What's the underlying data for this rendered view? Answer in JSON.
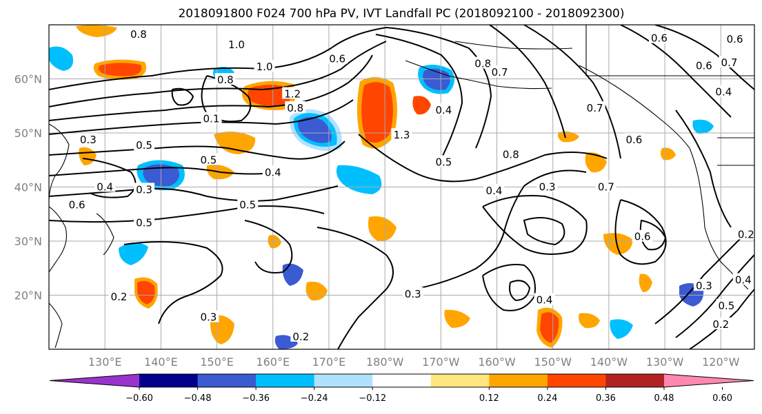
{
  "title": "2018091800 F024 700 hPa PV, IVT Landfall PC (2018092100 - 2018092300)",
  "map": {
    "lat_labels": [
      {
        "text": "60°N",
        "lat": 60
      },
      {
        "text": "50°N",
        "lat": 50
      },
      {
        "text": "40°N",
        "lat": 40
      },
      {
        "text": "30°N",
        "lat": 30
      },
      {
        "text": "20°N",
        "lat": 20
      }
    ],
    "lon_labels": [
      {
        "text": "130°E",
        "lon": 130
      },
      {
        "text": "140°E",
        "lon": 140
      },
      {
        "text": "150°E",
        "lon": 150
      },
      {
        "text": "160°E",
        "lon": 160
      },
      {
        "text": "170°E",
        "lon": 170
      },
      {
        "text": "180°W",
        "lon": 180
      },
      {
        "text": "170°W",
        "lon": 190
      },
      {
        "text": "160°W",
        "lon": 200
      },
      {
        "text": "150°W",
        "lon": 210
      },
      {
        "text": "140°W",
        "lon": 220
      },
      {
        "text": "130°W",
        "lon": 230
      },
      {
        "text": "120°W",
        "lon": 240
      }
    ],
    "extent": {
      "lon_min": 120,
      "lon_max": 246,
      "lat_min": 10,
      "lat_max": 70
    },
    "gridlines": true,
    "contour_labels": [
      {
        "text": "0.8",
        "lon": 136,
        "lat": 68.2
      },
      {
        "text": "1.0",
        "lon": 153.5,
        "lat": 66.3
      },
      {
        "text": "1.0",
        "lon": 158.5,
        "lat": 62.2
      },
      {
        "text": "0.8",
        "lon": 151.5,
        "lat": 59.8
      },
      {
        "text": "1.2",
        "lon": 163.5,
        "lat": 57.2
      },
      {
        "text": "0.8",
        "lon": 164,
        "lat": 54.6
      },
      {
        "text": "0.6",
        "lon": 171.5,
        "lat": 63.7
      },
      {
        "text": "0.8",
        "lon": 197.5,
        "lat": 62.8
      },
      {
        "text": "0.7",
        "lon": 200.5,
        "lat": 61.2
      },
      {
        "text": "0.4",
        "lon": 190.5,
        "lat": 54.2
      },
      {
        "text": "1.3",
        "lon": 183,
        "lat": 49.6
      },
      {
        "text": "0.5",
        "lon": 190.5,
        "lat": 44.6
      },
      {
        "text": "0.8",
        "lon": 202.5,
        "lat": 46.0
      },
      {
        "text": "0.7",
        "lon": 217.5,
        "lat": 54.6
      },
      {
        "text": "0.6",
        "lon": 224.5,
        "lat": 48.7
      },
      {
        "text": "0.7",
        "lon": 219.5,
        "lat": 40.0
      },
      {
        "text": "0.3",
        "lon": 209,
        "lat": 40.0
      },
      {
        "text": "0.4",
        "lon": 199.5,
        "lat": 39.3
      },
      {
        "text": "0.4",
        "lon": 160,
        "lat": 42.7
      },
      {
        "text": "0.5",
        "lon": 148.5,
        "lat": 45.0
      },
      {
        "text": "0.5",
        "lon": 137,
        "lat": 47.7
      },
      {
        "text": "0.3",
        "lon": 127,
        "lat": 48.7
      },
      {
        "text": "0.4",
        "lon": 130,
        "lat": 40.0
      },
      {
        "text": "0.3",
        "lon": 137,
        "lat": 39.5
      },
      {
        "text": "0.6",
        "lon": 125,
        "lat": 36.7
      },
      {
        "text": "0.5",
        "lon": 137,
        "lat": 33.4
      },
      {
        "text": "0.5",
        "lon": 155.5,
        "lat": 36.7
      },
      {
        "text": "0.1",
        "lon": 149,
        "lat": 52.6
      },
      {
        "text": "0.3",
        "lon": 185,
        "lat": 20.2
      },
      {
        "text": "0.4",
        "lon": 208.5,
        "lat": 19.1
      },
      {
        "text": "0.3",
        "lon": 148.5,
        "lat": 15.9
      },
      {
        "text": "0.2",
        "lon": 165,
        "lat": 12.3
      },
      {
        "text": "0.2",
        "lon": 132.5,
        "lat": 19.7
      },
      {
        "text": "0.6",
        "lon": 226,
        "lat": 30.8
      },
      {
        "text": "0.3",
        "lon": 237,
        "lat": 21.7
      },
      {
        "text": "0.4",
        "lon": 244,
        "lat": 22.8
      },
      {
        "text": "0.5",
        "lon": 241,
        "lat": 18.0
      },
      {
        "text": "0.2",
        "lon": 240,
        "lat": 14.6
      },
      {
        "text": "0.6",
        "lon": 229,
        "lat": 67.5
      },
      {
        "text": "0.6",
        "lon": 242.5,
        "lat": 67.3
      },
      {
        "text": "0.6",
        "lon": 237,
        "lat": 62.4
      },
      {
        "text": "0.7",
        "lon": 241.5,
        "lat": 63.0
      },
      {
        "text": "0.4",
        "lon": 240.5,
        "lat": 57.6
      },
      {
        "text": "0.2",
        "lon": 244.5,
        "lat": 31.2
      }
    ]
  },
  "colorbar": {
    "ticks": [
      "−0.60",
      "−0.48",
      "−0.36",
      "−0.24",
      "−0.12",
      "0.12",
      "0.24",
      "0.36",
      "0.48",
      "0.60"
    ],
    "colors": [
      "#9933cc",
      "#00008b",
      "#3a5bd2",
      "#00bfff",
      "#b0e2ff",
      "#ffffff",
      "#ffe680",
      "#ffa500",
      "#ff4500",
      "#b22222",
      "#ff88b0"
    ]
  },
  "colors": {
    "negative_shades": [
      "#3a5bd2",
      "#00bfff",
      "#b0e2ff"
    ],
    "positive_shades": [
      "#ffe680",
      "#ffa500",
      "#ff4500"
    ],
    "contour": "#000000",
    "grid": "#aaaaaa",
    "axis_label": "#7f7f7f"
  }
}
